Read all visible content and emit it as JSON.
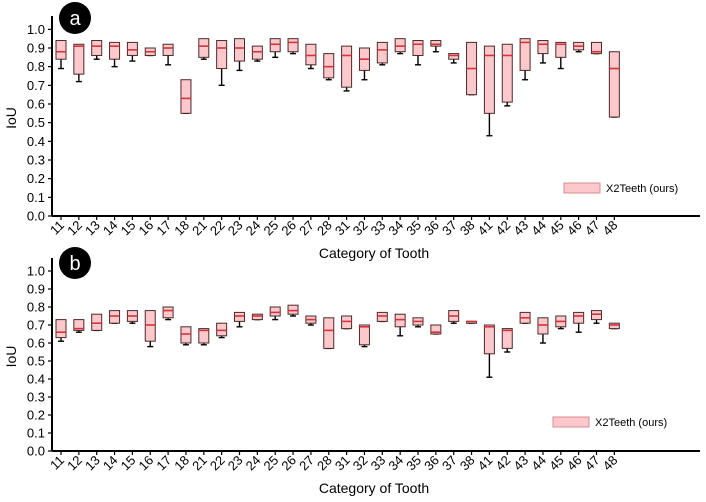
{
  "colors": {
    "box_fill": "#fcc8cb",
    "box_edge": "#4a2a2a",
    "median": "#d1343c",
    "whisker": "#000000",
    "legend_fill": "#fcc8cb",
    "legend_edge": "#d98c8f",
    "badge": "#000000"
  },
  "chart_data": [
    {
      "type": "box",
      "panel_label": "a",
      "xlabel": "Category of Tooth",
      "ylabel": "IoU",
      "ylim": [
        0.0,
        1.05
      ],
      "yticks": [
        "0.0",
        "0.1",
        "0.2",
        "0.3",
        "0.4",
        "0.5",
        "0.6",
        "0.7",
        "0.8",
        "0.9",
        "1.0"
      ],
      "categories": [
        "11",
        "12",
        "13",
        "14",
        "15",
        "16",
        "17",
        "18",
        "21",
        "22",
        "23",
        "24",
        "25",
        "26",
        "27",
        "28",
        "31",
        "32",
        "33",
        "34",
        "35",
        "36",
        "37",
        "38",
        "41",
        "42",
        "43",
        "44",
        "45",
        "46",
        "47",
        "48"
      ],
      "legend": "X2Teeth (ours)",
      "series": [
        {
          "name": "X2Teeth (ours)",
          "boxes": [
            {
              "whislo": 0.79,
              "q1": 0.84,
              "med": 0.88,
              "q3": 0.94,
              "whishi": 0.94
            },
            {
              "whislo": 0.72,
              "q1": 0.76,
              "med": 0.91,
              "q3": 0.92,
              "whishi": 0.92
            },
            {
              "whislo": 0.84,
              "q1": 0.86,
              "med": 0.91,
              "q3": 0.94,
              "whishi": 0.94
            },
            {
              "whislo": 0.8,
              "q1": 0.84,
              "med": 0.91,
              "q3": 0.93,
              "whishi": 0.93
            },
            {
              "whislo": 0.83,
              "q1": 0.86,
              "med": 0.89,
              "q3": 0.93,
              "whishi": 0.93
            },
            {
              "whislo": 0.86,
              "q1": 0.86,
              "med": 0.88,
              "q3": 0.9,
              "whishi": 0.9
            },
            {
              "whislo": 0.81,
              "q1": 0.86,
              "med": 0.9,
              "q3": 0.92,
              "whishi": 0.92
            },
            {
              "whislo": 0.55,
              "q1": 0.55,
              "med": 0.63,
              "q3": 0.73,
              "whishi": 0.73
            },
            {
              "whislo": 0.84,
              "q1": 0.85,
              "med": 0.91,
              "q3": 0.95,
              "whishi": 0.95
            },
            {
              "whislo": 0.7,
              "q1": 0.79,
              "med": 0.9,
              "q3": 0.94,
              "whishi": 0.94
            },
            {
              "whislo": 0.78,
              "q1": 0.83,
              "med": 0.9,
              "q3": 0.95,
              "whishi": 0.95
            },
            {
              "whislo": 0.83,
              "q1": 0.84,
              "med": 0.88,
              "q3": 0.91,
              "whishi": 0.91
            },
            {
              "whislo": 0.85,
              "q1": 0.88,
              "med": 0.92,
              "q3": 0.95,
              "whishi": 0.95
            },
            {
              "whislo": 0.87,
              "q1": 0.88,
              "med": 0.93,
              "q3": 0.95,
              "whishi": 0.95
            },
            {
              "whislo": 0.79,
              "q1": 0.81,
              "med": 0.86,
              "q3": 0.92,
              "whishi": 0.92
            },
            {
              "whislo": 0.73,
              "q1": 0.74,
              "med": 0.8,
              "q3": 0.87,
              "whishi": 0.87
            },
            {
              "whislo": 0.67,
              "q1": 0.69,
              "med": 0.86,
              "q3": 0.91,
              "whishi": 0.91
            },
            {
              "whislo": 0.73,
              "q1": 0.78,
              "med": 0.84,
              "q3": 0.9,
              "whishi": 0.9
            },
            {
              "whislo": 0.81,
              "q1": 0.82,
              "med": 0.89,
              "q3": 0.93,
              "whishi": 0.93
            },
            {
              "whislo": 0.87,
              "q1": 0.88,
              "med": 0.91,
              "q3": 0.95,
              "whishi": 0.95
            },
            {
              "whislo": 0.81,
              "q1": 0.86,
              "med": 0.92,
              "q3": 0.94,
              "whishi": 0.94
            },
            {
              "whislo": 0.88,
              "q1": 0.91,
              "med": 0.92,
              "q3": 0.94,
              "whishi": 0.94
            },
            {
              "whislo": 0.82,
              "q1": 0.84,
              "med": 0.86,
              "q3": 0.87,
              "whishi": 0.87
            },
            {
              "whislo": 0.65,
              "q1": 0.65,
              "med": 0.79,
              "q3": 0.93,
              "whishi": 0.93
            },
            {
              "whislo": 0.43,
              "q1": 0.55,
              "med": 0.86,
              "q3": 0.91,
              "whishi": 0.91
            },
            {
              "whislo": 0.59,
              "q1": 0.61,
              "med": 0.86,
              "q3": 0.92,
              "whishi": 0.92
            },
            {
              "whislo": 0.73,
              "q1": 0.78,
              "med": 0.93,
              "q3": 0.95,
              "whishi": 0.95
            },
            {
              "whislo": 0.82,
              "q1": 0.87,
              "med": 0.92,
              "q3": 0.94,
              "whishi": 0.94
            },
            {
              "whislo": 0.79,
              "q1": 0.85,
              "med": 0.92,
              "q3": 0.93,
              "whishi": 0.93
            },
            {
              "whislo": 0.88,
              "q1": 0.89,
              "med": 0.91,
              "q3": 0.93,
              "whishi": 0.93
            },
            {
              "whislo": 0.87,
              "q1": 0.87,
              "med": 0.88,
              "q3": 0.93,
              "whishi": 0.93
            },
            {
              "whislo": 0.53,
              "q1": 0.53,
              "med": 0.79,
              "q3": 0.88,
              "whishi": 0.88
            }
          ]
        }
      ]
    },
    {
      "type": "box",
      "panel_label": "b",
      "xlabel": "Category of Tooth",
      "ylabel": "IoU",
      "ylim": [
        0.0,
        1.05
      ],
      "yticks": [
        "0.0",
        "0.1",
        "0.2",
        "0.3",
        "0.4",
        "0.5",
        "0.6",
        "0.7",
        "0.8",
        "0.9",
        "1.0"
      ],
      "categories": [
        "11",
        "12",
        "13",
        "14",
        "15",
        "16",
        "17",
        "18",
        "21",
        "22",
        "23",
        "24",
        "25",
        "26",
        "27",
        "28",
        "31",
        "32",
        "33",
        "34",
        "35",
        "36",
        "37",
        "38",
        "41",
        "42",
        "43",
        "44",
        "45",
        "46",
        "47",
        "48"
      ],
      "legend": "X2Teeth (ours)",
      "series": [
        {
          "name": "X2Teeth (ours)",
          "boxes": [
            {
              "whislo": 0.61,
              "q1": 0.63,
              "med": 0.66,
              "q3": 0.73,
              "whishi": 0.73
            },
            {
              "whislo": 0.66,
              "q1": 0.67,
              "med": 0.68,
              "q3": 0.73,
              "whishi": 0.73
            },
            {
              "whislo": 0.67,
              "q1": 0.67,
              "med": 0.71,
              "q3": 0.76,
              "whishi": 0.76
            },
            {
              "whislo": 0.71,
              "q1": 0.71,
              "med": 0.75,
              "q3": 0.78,
              "whishi": 0.78
            },
            {
              "whislo": 0.71,
              "q1": 0.72,
              "med": 0.75,
              "q3": 0.78,
              "whishi": 0.78
            },
            {
              "whislo": 0.58,
              "q1": 0.61,
              "med": 0.7,
              "q3": 0.78,
              "whishi": 0.78
            },
            {
              "whislo": 0.73,
              "q1": 0.74,
              "med": 0.78,
              "q3": 0.8,
              "whishi": 0.8
            },
            {
              "whislo": 0.59,
              "q1": 0.6,
              "med": 0.65,
              "q3": 0.69,
              "whishi": 0.69
            },
            {
              "whislo": 0.59,
              "q1": 0.6,
              "med": 0.67,
              "q3": 0.68,
              "whishi": 0.68
            },
            {
              "whislo": 0.63,
              "q1": 0.64,
              "med": 0.67,
              "q3": 0.71,
              "whishi": 0.71
            },
            {
              "whislo": 0.69,
              "q1": 0.72,
              "med": 0.75,
              "q3": 0.77,
              "whishi": 0.77
            },
            {
              "whislo": 0.73,
              "q1": 0.73,
              "med": 0.75,
              "q3": 0.76,
              "whishi": 0.76
            },
            {
              "whislo": 0.73,
              "q1": 0.75,
              "med": 0.77,
              "q3": 0.8,
              "whishi": 0.8
            },
            {
              "whislo": 0.75,
              "q1": 0.76,
              "med": 0.78,
              "q3": 0.81,
              "whishi": 0.81
            },
            {
              "whislo": 0.7,
              "q1": 0.71,
              "med": 0.73,
              "q3": 0.75,
              "whishi": 0.75
            },
            {
              "whislo": 0.57,
              "q1": 0.57,
              "med": 0.67,
              "q3": 0.74,
              "whishi": 0.74
            },
            {
              "whislo": 0.68,
              "q1": 0.68,
              "med": 0.72,
              "q3": 0.75,
              "whishi": 0.75
            },
            {
              "whislo": 0.58,
              "q1": 0.59,
              "med": 0.69,
              "q3": 0.7,
              "whishi": 0.7
            },
            {
              "whislo": 0.72,
              "q1": 0.72,
              "med": 0.75,
              "q3": 0.77,
              "whishi": 0.77
            },
            {
              "whislo": 0.64,
              "q1": 0.69,
              "med": 0.73,
              "q3": 0.76,
              "whishi": 0.76
            },
            {
              "whislo": 0.69,
              "q1": 0.7,
              "med": 0.72,
              "q3": 0.74,
              "whishi": 0.74
            },
            {
              "whislo": 0.65,
              "q1": 0.65,
              "med": 0.66,
              "q3": 0.7,
              "whishi": 0.7
            },
            {
              "whislo": 0.71,
              "q1": 0.72,
              "med": 0.75,
              "q3": 0.78,
              "whishi": 0.78
            },
            {
              "whislo": 0.71,
              "q1": 0.71,
              "med": 0.72,
              "q3": 0.72,
              "whishi": 0.72
            },
            {
              "whislo": 0.41,
              "q1": 0.54,
              "med": 0.69,
              "q3": 0.7,
              "whishi": 0.7
            },
            {
              "whislo": 0.55,
              "q1": 0.57,
              "med": 0.67,
              "q3": 0.68,
              "whishi": 0.68
            },
            {
              "whislo": 0.71,
              "q1": 0.71,
              "med": 0.74,
              "q3": 0.77,
              "whishi": 0.77
            },
            {
              "whislo": 0.6,
              "q1": 0.65,
              "med": 0.7,
              "q3": 0.74,
              "whishi": 0.74
            },
            {
              "whislo": 0.68,
              "q1": 0.69,
              "med": 0.72,
              "q3": 0.75,
              "whishi": 0.75
            },
            {
              "whislo": 0.66,
              "q1": 0.71,
              "med": 0.75,
              "q3": 0.77,
              "whishi": 0.77
            },
            {
              "whislo": 0.71,
              "q1": 0.73,
              "med": 0.76,
              "q3": 0.78,
              "whishi": 0.78
            },
            {
              "whislo": 0.68,
              "q1": 0.68,
              "med": 0.7,
              "q3": 0.71,
              "whishi": 0.71
            }
          ]
        }
      ]
    }
  ]
}
